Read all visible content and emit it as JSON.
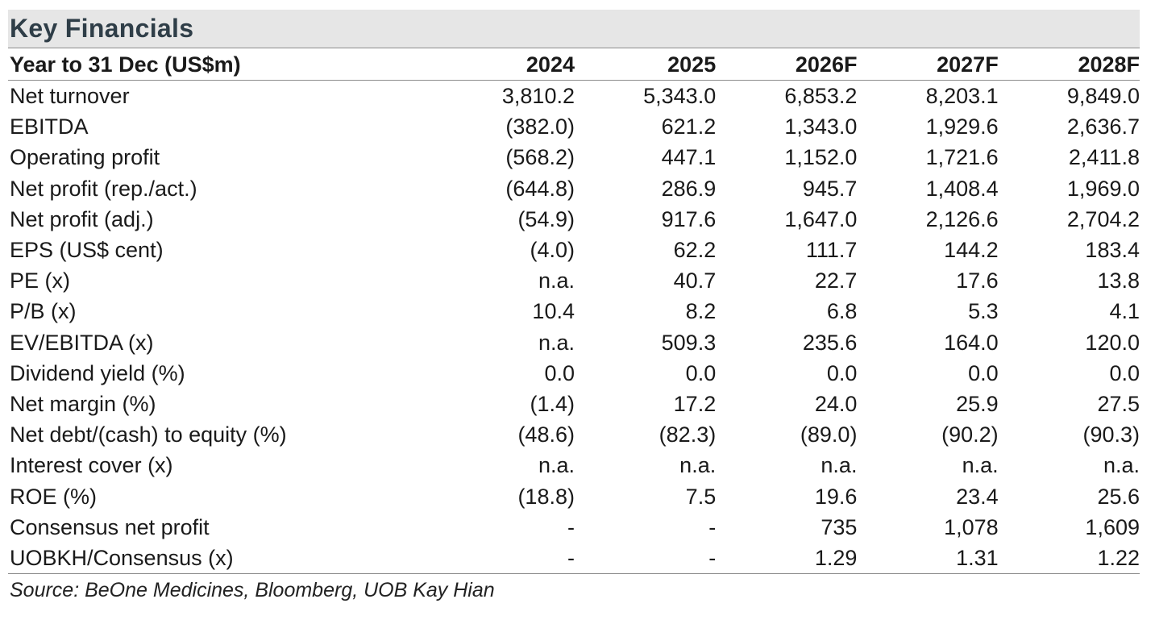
{
  "title": "Key Financials",
  "header": {
    "label": "Year to 31 Dec (US$m)",
    "years": [
      "2024",
      "2025",
      "2026F",
      "2027F",
      "2028F"
    ]
  },
  "rows": [
    {
      "label": "Net turnover",
      "values": [
        "3,810.2",
        "5,343.0",
        "6,853.2",
        "8,203.1",
        "9,849.0"
      ]
    },
    {
      "label": "EBITDA",
      "values": [
        "(382.0)",
        "621.2",
        "1,343.0",
        "1,929.6",
        "2,636.7"
      ]
    },
    {
      "label": "Operating profit",
      "values": [
        "(568.2)",
        "447.1",
        "1,152.0",
        "1,721.6",
        "2,411.8"
      ]
    },
    {
      "label": "Net profit (rep./act.)",
      "values": [
        "(644.8)",
        "286.9",
        "945.7",
        "1,408.4",
        "1,969.0"
      ]
    },
    {
      "label": "Net profit (adj.)",
      "values": [
        "(54.9)",
        "917.6",
        "1,647.0",
        "2,126.6",
        "2,704.2"
      ]
    },
    {
      "label": "EPS (US$ cent)",
      "values": [
        "(4.0)",
        "62.2",
        "111.7",
        "144.2",
        "183.4"
      ]
    },
    {
      "label": "PE (x)",
      "values": [
        "n.a.",
        "40.7",
        "22.7",
        "17.6",
        "13.8"
      ]
    },
    {
      "label": "P/B (x)",
      "values": [
        "10.4",
        "8.2",
        "6.8",
        "5.3",
        "4.1"
      ]
    },
    {
      "label": "EV/EBITDA (x)",
      "values": [
        "n.a.",
        "509.3",
        "235.6",
        "164.0",
        "120.0"
      ]
    },
    {
      "label": "Dividend yield (%)",
      "values": [
        "0.0",
        "0.0",
        "0.0",
        "0.0",
        "0.0"
      ]
    },
    {
      "label": "Net margin (%)",
      "values": [
        "(1.4)",
        "17.2",
        "24.0",
        "25.9",
        "27.5"
      ]
    },
    {
      "label": "Net debt/(cash) to equity (%)",
      "values": [
        "(48.6)",
        "(82.3)",
        "(89.0)",
        "(90.2)",
        "(90.3)"
      ]
    },
    {
      "label": "Interest cover (x)",
      "values": [
        "n.a.",
        "n.a.",
        "n.a.",
        "n.a.",
        "n.a."
      ]
    },
    {
      "label": "ROE (%)",
      "values": [
        "(18.8)",
        "7.5",
        "19.6",
        "23.4",
        "25.6"
      ]
    },
    {
      "label": "Consensus net profit",
      "values": [
        "-",
        "-",
        "735",
        "1,078",
        "1,609"
      ]
    },
    {
      "label": "UOBKH/Consensus (x)",
      "values": [
        "-",
        "-",
        "1.29",
        "1.31",
        "1.22"
      ]
    }
  ],
  "source": "Source: BeOne Medicines, Bloomberg, UOB Kay Hian"
}
